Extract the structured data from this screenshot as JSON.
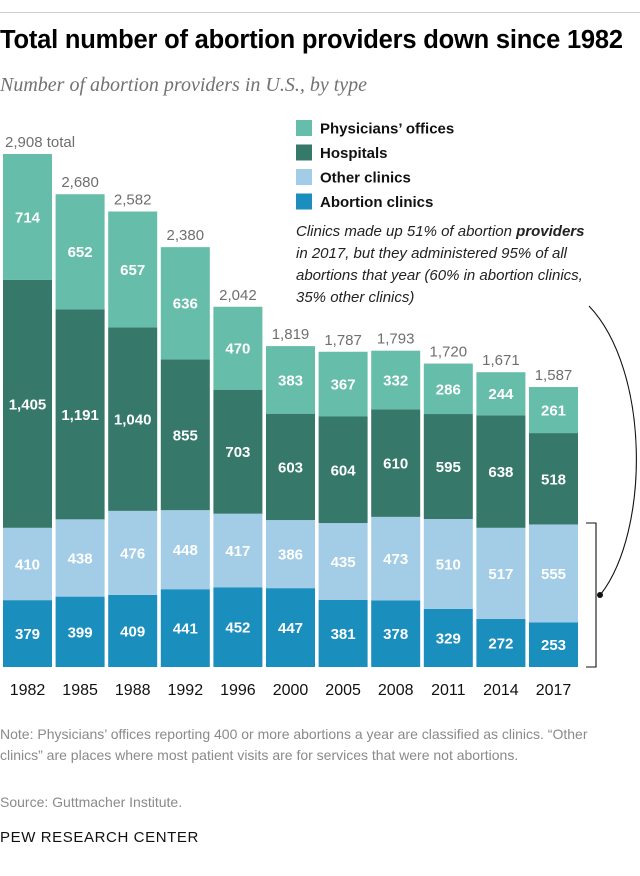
{
  "title": "Total number of abortion providers down since 1982",
  "subtitle": "Number of abortion providers in U.S., by type",
  "chart_data": {
    "type": "bar",
    "stacked": true,
    "categories": [
      "1982",
      "1985",
      "1988",
      "1992",
      "1996",
      "2000",
      "2005",
      "2008",
      "2011",
      "2014",
      "2017"
    ],
    "series": [
      {
        "name": "Abortion clinics",
        "color": "#1a8ebd",
        "values": [
          379,
          399,
          409,
          441,
          452,
          447,
          381,
          378,
          329,
          272,
          253
        ]
      },
      {
        "name": "Other clinics",
        "color": "#a3cde6",
        "values": [
          410,
          438,
          476,
          448,
          417,
          386,
          435,
          473,
          510,
          517,
          555
        ]
      },
      {
        "name": "Hospitals",
        "color": "#36786a",
        "values": [
          1405,
          1191,
          1040,
          855,
          703,
          603,
          604,
          610,
          595,
          638,
          518
        ]
      },
      {
        "name": "Physicians’ offices",
        "color": "#66bda9",
        "values": [
          714,
          652,
          657,
          636,
          470,
          383,
          367,
          332,
          286,
          244,
          261
        ]
      }
    ],
    "totals": [
      2908,
      2680,
      2582,
      2380,
      2042,
      1819,
      1787,
      1793,
      1720,
      1671,
      1587
    ],
    "total_labels": [
      "2,908",
      "2,680",
      "2,582",
      "2,380",
      "2,042",
      "1,819",
      "1,787",
      "1,793",
      "1,720",
      "1,671",
      "1,587"
    ],
    "value_labels": [
      [
        "379",
        "399",
        "409",
        "441",
        "452",
        "447",
        "381",
        "378",
        "329",
        "272",
        "253"
      ],
      [
        "410",
        "438",
        "476",
        "448",
        "417",
        "386",
        "435",
        "473",
        "510",
        "517",
        "555"
      ],
      [
        "1,405",
        "1,191",
        "1,040",
        "855",
        "703",
        "603",
        "604",
        "610",
        "595",
        "638",
        "518"
      ],
      [
        "714",
        "652",
        "657",
        "636",
        "470",
        "383",
        "367",
        "332",
        "286",
        "244",
        "261"
      ]
    ],
    "first_total_suffix": " total",
    "legend_order": [
      "Physicians’ offices",
      "Hospitals",
      "Other clinics",
      "Abortion clinics"
    ],
    "legend_position": "top-right",
    "ylim": [
      0,
      2908
    ],
    "grid": false,
    "annotation": {
      "text_lines": [
        [
          "Clinics made up 51% of abortion ",
          "providers"
        ],
        [
          "in 2017, but they administered 95% of all"
        ],
        [
          "abortions that year (60% in abortion clinics,"
        ],
        [
          "35% other clinics)"
        ]
      ]
    }
  },
  "note": "Note: Physicians’ offices reporting 400 or more abortions a year are classified as clinics. “Other clinics” are places where most patient visits are for services that were not abortions.",
  "source": "Source: Guttmacher Institute.",
  "brand": "PEW RESEARCH CENTER"
}
